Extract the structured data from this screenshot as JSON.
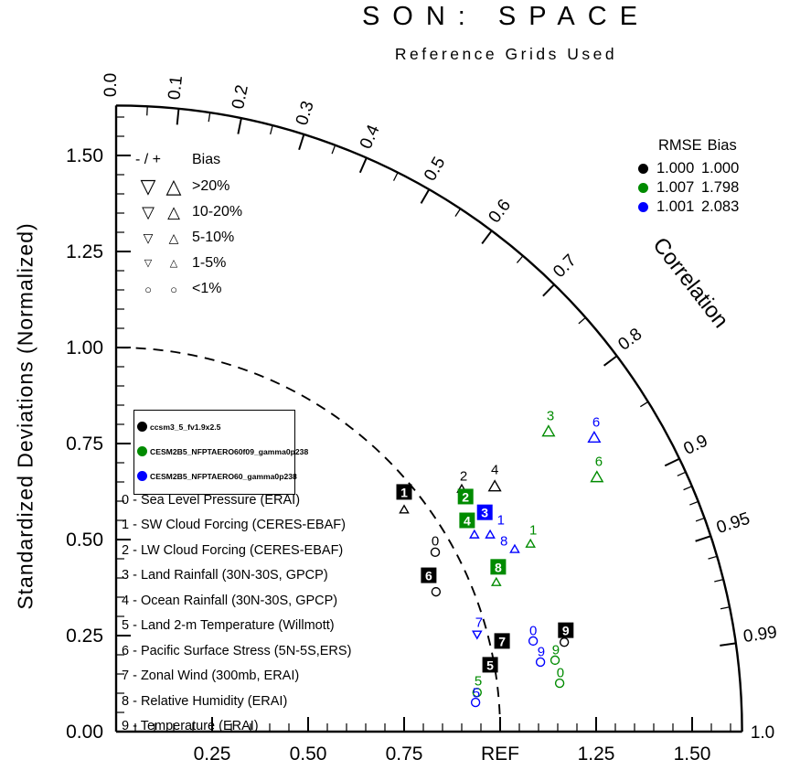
{
  "title": "SON: SPACE",
  "subtitle": "Reference Grids Used",
  "chart_data": {
    "type": "taylor-diagram",
    "title": "SON: SPACE",
    "subtitle": "Reference Grids Used",
    "ylabel": "Standardized Deviations (Normalized)",
    "correlation_label": "Correlation",
    "axis_max": 1.63,
    "reference_radius": 1.0,
    "ref_label": "REF",
    "x_ticks": [
      {
        "v": 0.25,
        "label": "0.25"
      },
      {
        "v": 0.5,
        "label": "0.50"
      },
      {
        "v": 0.75,
        "label": "0.75"
      },
      {
        "v": 1.0,
        "label": "REF"
      },
      {
        "v": 1.25,
        "label": "1.25"
      },
      {
        "v": 1.5,
        "label": "1.50"
      }
    ],
    "y_ticks": [
      {
        "v": 0.0,
        "label": "0.00"
      },
      {
        "v": 0.25,
        "label": "0.25"
      },
      {
        "v": 0.5,
        "label": "0.50"
      },
      {
        "v": 0.75,
        "label": "0.75"
      },
      {
        "v": 1.0,
        "label": "1.00"
      },
      {
        "v": 1.25,
        "label": "1.25"
      },
      {
        "v": 1.5,
        "label": "1.50"
      }
    ],
    "correlation_major_ticks": [
      {
        "v": 0.0,
        "label": "0.0"
      },
      {
        "v": 0.1,
        "label": "0.1"
      },
      {
        "v": 0.2,
        "label": "0.2"
      },
      {
        "v": 0.3,
        "label": "0.3"
      },
      {
        "v": 0.4,
        "label": "0.4"
      },
      {
        "v": 0.5,
        "label": "0.5"
      },
      {
        "v": 0.6,
        "label": "0.6"
      },
      {
        "v": 0.7,
        "label": "0.7"
      },
      {
        "v": 0.8,
        "label": "0.8"
      },
      {
        "v": 0.9,
        "label": "0.9"
      },
      {
        "v": 0.95,
        "label": "0.95"
      },
      {
        "v": 0.99,
        "label": "0.99"
      },
      {
        "v": 1.0,
        "label": "1.0"
      }
    ],
    "correlation_minor_ticks": [
      0.05,
      0.15,
      0.25,
      0.35,
      0.45,
      0.55,
      0.65,
      0.75,
      0.85,
      0.91,
      0.92,
      0.93,
      0.94,
      0.96,
      0.97,
      0.98
    ],
    "rmse_header": "RMSE",
    "bias_header": "Bias",
    "models": [
      {
        "name": "ccsm3_5_fv1.9x2.5",
        "color": "#000000",
        "rmse": "1.000",
        "bias": "1.000"
      },
      {
        "name": "CESM2B5_NFPTAERO60f09_gamma0p238",
        "color": "#008B00",
        "rmse": "1.007",
        "bias": "1.798"
      },
      {
        "name": "CESM2B5_NFPTAERO60_gamma0p238",
        "color": "#0000FF",
        "rmse": "1.001",
        "bias": "2.083"
      }
    ],
    "bias_legend": {
      "header_symbols": "- / +",
      "header_label": "Bias",
      "rows": [
        {
          "label": ">20%",
          "symbol": "triangle",
          "size": 4
        },
        {
          "label": "10-20%",
          "symbol": "triangle",
          "size": 3
        },
        {
          "label": "5-10%",
          "symbol": "triangle",
          "size": 2
        },
        {
          "label": "1-5%",
          "symbol": "triangle",
          "size": 1
        },
        {
          "label": "<1%",
          "symbol": "circle",
          "size": 1
        }
      ]
    },
    "variables": [
      "0 - Sea Level Pressure (ERAI)",
      "1 - SW Cloud Forcing (CERES-EBAF)",
      "2 - LW Cloud Forcing (CERES-EBAF)",
      "3 - Land Rainfall (30N-30S, GPCP)",
      "4 - Ocean Rainfall (30N-30S, GPCP)",
      "5 - Land 2-m Temperature (Willmott)",
      "6 - Pacific Surface Stress (5N-5S,ERS)",
      "7 - Zonal Wind (300mb, ERAI)",
      "8 - Relative Humidity (ERAI)",
      "9 - Temperature (ERAI)"
    ],
    "points": [
      {
        "m": 0,
        "v": "1",
        "x": 0.75,
        "y": 0.624,
        "boxed": true
      },
      {
        "m": 0,
        "v": "2",
        "x": 0.905,
        "y": 0.667,
        "boxed": false
      },
      {
        "m": 0,
        "v": "4",
        "x": 0.986,
        "y": 0.683,
        "boxed": false
      },
      {
        "m": 0,
        "v": "0",
        "x": 0.831,
        "y": 0.498,
        "boxed": false
      },
      {
        "m": 0,
        "v": "6",
        "x": 0.814,
        "y": 0.407,
        "boxed": true
      },
      {
        "m": 0,
        "v": "5",
        "x": 0.974,
        "y": 0.174,
        "boxed": true
      },
      {
        "m": 0,
        "v": "7",
        "x": 1.005,
        "y": 0.236,
        "boxed": true
      },
      {
        "m": 0,
        "v": "9",
        "x": 1.171,
        "y": 0.264,
        "boxed": true
      },
      {
        "m": 1,
        "v": "2",
        "x": 0.91,
        "y": 0.612,
        "boxed": true
      },
      {
        "m": 1,
        "v": "4",
        "x": 0.914,
        "y": 0.55,
        "boxed": true
      },
      {
        "m": 1,
        "v": "8",
        "x": 0.995,
        "y": 0.429,
        "boxed": true
      },
      {
        "m": 1,
        "v": "1",
        "x": 1.086,
        "y": 0.526,
        "boxed": false
      },
      {
        "m": 1,
        "v": "3",
        "x": 1.131,
        "y": 0.824,
        "boxed": false
      },
      {
        "m": 1,
        "v": "6",
        "x": 1.257,
        "y": 0.705,
        "boxed": false
      },
      {
        "m": 1,
        "v": "9",
        "x": 1.145,
        "y": 0.214,
        "boxed": false
      },
      {
        "m": 1,
        "v": "0",
        "x": 1.157,
        "y": 0.155,
        "boxed": false
      },
      {
        "m": 1,
        "v": "5",
        "x": 0.943,
        "y": 0.133,
        "boxed": false
      },
      {
        "m": 2,
        "v": "3",
        "x": 0.96,
        "y": 0.571,
        "boxed": true
      },
      {
        "m": 2,
        "v": "1",
        "x": 1.002,
        "y": 0.552,
        "boxed": false
      },
      {
        "m": 2,
        "v": "8",
        "x": 1.01,
        "y": 0.498,
        "boxed": false
      },
      {
        "m": 2,
        "v": "6",
        "x": 1.25,
        "y": 0.807,
        "boxed": false
      },
      {
        "m": 2,
        "v": "7",
        "x": 0.945,
        "y": 0.286,
        "boxed": false
      },
      {
        "m": 2,
        "v": "0",
        "x": 1.086,
        "y": 0.264,
        "boxed": false
      },
      {
        "m": 2,
        "v": "9",
        "x": 1.107,
        "y": 0.21,
        "boxed": false
      },
      {
        "m": 2,
        "v": "5",
        "x": 0.938,
        "y": 0.102,
        "boxed": false
      }
    ],
    "bias_markers": [
      {
        "m": 0,
        "t": "up",
        "s": 1,
        "x": 0.75,
        "y": 0.579
      },
      {
        "m": 0,
        "t": "up",
        "s": 1,
        "x": 0.9,
        "y": 0.633
      },
      {
        "m": 0,
        "t": "up",
        "s": 2,
        "x": 0.986,
        "y": 0.64
      },
      {
        "m": 0,
        "t": "circle",
        "s": 1,
        "x": 0.831,
        "y": 0.467
      },
      {
        "m": 0,
        "t": "circle",
        "s": 1,
        "x": 0.833,
        "y": 0.364
      },
      {
        "m": 0,
        "t": "circle",
        "s": 1,
        "x": 1.167,
        "y": 0.233
      },
      {
        "m": 1,
        "t": "up",
        "s": 1,
        "x": 1.079,
        "y": 0.49
      },
      {
        "m": 1,
        "t": "up",
        "s": 1,
        "x": 0.99,
        "y": 0.39
      },
      {
        "m": 1,
        "t": "up",
        "s": 2,
        "x": 1.126,
        "y": 0.783
      },
      {
        "m": 1,
        "t": "up",
        "s": 2,
        "x": 1.252,
        "y": 0.664
      },
      {
        "m": 1,
        "t": "circle",
        "s": 1,
        "x": 1.143,
        "y": 0.186
      },
      {
        "m": 1,
        "t": "circle",
        "s": 1,
        "x": 1.155,
        "y": 0.126
      },
      {
        "m": 1,
        "t": "circle",
        "s": 1,
        "x": 0.94,
        "y": 0.102
      },
      {
        "m": 2,
        "t": "up",
        "s": 1,
        "x": 0.933,
        "y": 0.514
      },
      {
        "m": 2,
        "t": "up",
        "s": 1,
        "x": 0.974,
        "y": 0.514
      },
      {
        "m": 2,
        "t": "up",
        "s": 1,
        "x": 1.038,
        "y": 0.476
      },
      {
        "m": 2,
        "t": "up",
        "s": 2,
        "x": 1.245,
        "y": 0.767
      },
      {
        "m": 2,
        "t": "down",
        "s": 1,
        "x": 0.94,
        "y": 0.252
      },
      {
        "m": 2,
        "t": "circle",
        "s": 1,
        "x": 1.086,
        "y": 0.236
      },
      {
        "m": 2,
        "t": "circle",
        "s": 1,
        "x": 1.105,
        "y": 0.181
      },
      {
        "m": 2,
        "t": "circle",
        "s": 1,
        "x": 0.936,
        "y": 0.076
      }
    ]
  }
}
